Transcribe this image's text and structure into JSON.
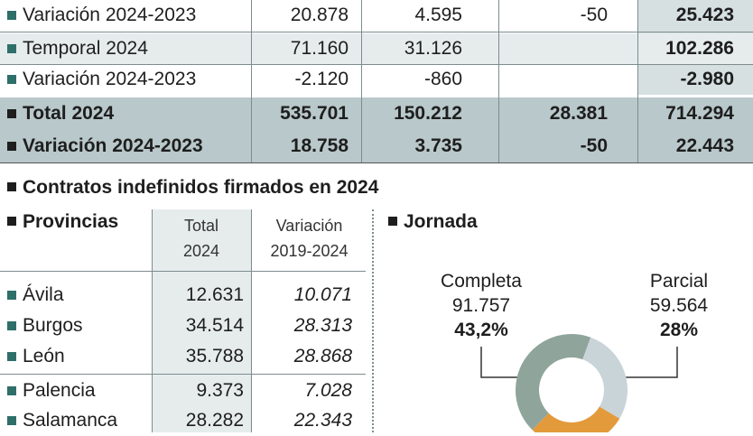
{
  "top_table": {
    "rows": [
      {
        "label": "Variación 2024-2023",
        "v1": "20.878",
        "v2": "4.595",
        "v3": "-50",
        "total": "25.423",
        "style": "light"
      },
      {
        "label": "Temporal 2024",
        "v1": "71.160",
        "v2": "31.126",
        "v3": "",
        "total": "102.286",
        "style": "shade"
      },
      {
        "label": "Variación 2024-2023",
        "v1": "-2.120",
        "v2": "-860",
        "v3": "",
        "total": "-2.980",
        "style": "light"
      },
      {
        "label": "Total 2024",
        "v1": "535.701",
        "v2": "150.212",
        "v3": "28.381",
        "total": "714.294",
        "style": "dark"
      },
      {
        "label": "Variación 2024-2023",
        "v1": "18.758",
        "v2": "3.735",
        "v3": "-50",
        "total": "22.443",
        "style": "dark"
      }
    ]
  },
  "contracts": {
    "title": "Contratos indefinidos firmados en 2024",
    "provinces_header": "Provincias",
    "col_total": [
      "Total",
      "2024"
    ],
    "col_variation": [
      "Variación",
      "2019-2024"
    ],
    "rows": [
      {
        "name": "Ávila",
        "total": "12.631",
        "variation": "10.071"
      },
      {
        "name": "Burgos",
        "total": "34.514",
        "variation": "28.313"
      },
      {
        "name": "León",
        "total": "35.788",
        "variation": "28.868"
      },
      {
        "name": "Palencia",
        "total": "9.373",
        "variation": "7.028"
      },
      {
        "name": "Salamanca",
        "total": "28.282",
        "variation": "22.343"
      }
    ]
  },
  "jornada": {
    "title": "Jornada",
    "completa": {
      "label": "Completa",
      "value": "91.757",
      "percent": "43,2%"
    },
    "parcial": {
      "label": "Parcial",
      "value": "59.564",
      "percent": "28%"
    }
  },
  "colors": {
    "accent_square": "#2f6f6a",
    "donut_completa": "#8fa49b",
    "donut_parcial": "#c9d4d9",
    "donut_orange": "#e39a3b"
  }
}
